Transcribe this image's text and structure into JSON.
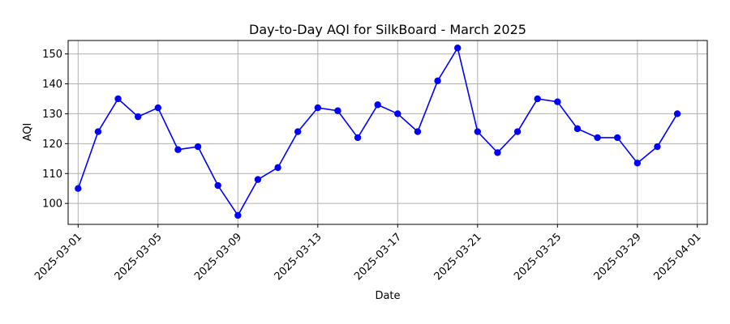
{
  "chart_data": {
    "type": "line",
    "title": "Day-to-Day AQI for SilkBoard - March 2025",
    "xlabel": "Date",
    "ylabel": "AQI",
    "x": [
      "2025-03-01",
      "2025-03-02",
      "2025-03-03",
      "2025-03-04",
      "2025-03-05",
      "2025-03-06",
      "2025-03-07",
      "2025-03-08",
      "2025-03-09",
      "2025-03-10",
      "2025-03-11",
      "2025-03-12",
      "2025-03-13",
      "2025-03-14",
      "2025-03-15",
      "2025-03-16",
      "2025-03-17",
      "2025-03-18",
      "2025-03-19",
      "2025-03-20",
      "2025-03-21",
      "2025-03-22",
      "2025-03-23",
      "2025-03-24",
      "2025-03-25",
      "2025-03-26",
      "2025-03-27",
      "2025-03-28",
      "2025-03-29",
      "2025-03-30",
      "2025-03-31"
    ],
    "values": [
      105,
      124,
      135,
      129,
      132,
      118,
      119,
      106,
      96,
      108,
      112,
      124,
      132,
      131,
      122,
      133,
      130,
      124,
      141,
      152,
      124,
      117,
      124,
      135,
      134,
      125,
      122,
      122,
      113.5,
      119,
      130
    ],
    "ylim": [
      93,
      154.5
    ],
    "xlim": [
      "2025-02-28T12:00",
      "2025-04-01T12:00"
    ],
    "yticks": [
      100,
      110,
      120,
      130,
      140,
      150
    ],
    "xticks": [
      "2025-03-01",
      "2025-03-05",
      "2025-03-09",
      "2025-03-13",
      "2025-03-17",
      "2025-03-21",
      "2025-03-25",
      "2025-03-29",
      "2025-04-01"
    ],
    "grid": true,
    "color": "#0000ff"
  }
}
